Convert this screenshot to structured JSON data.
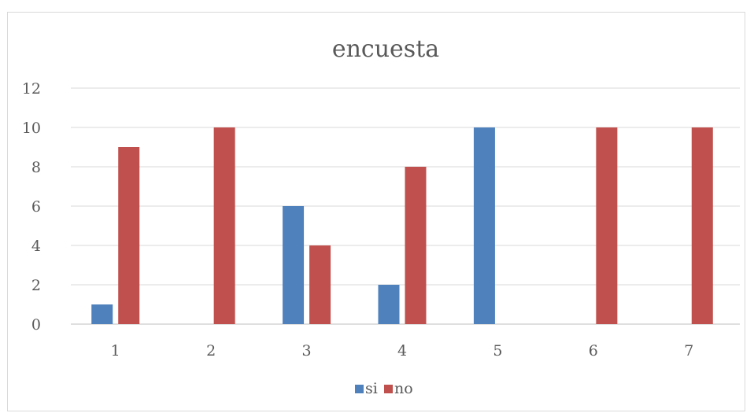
{
  "chart_data": {
    "type": "bar",
    "title": "encuesta",
    "xlabel": "",
    "ylabel": "",
    "categories": [
      "1",
      "2",
      "3",
      "4",
      "5",
      "6",
      "7"
    ],
    "series": [
      {
        "name": "si",
        "color": "#4f81bd",
        "values": [
          1,
          0,
          6,
          2,
          10,
          0,
          0
        ]
      },
      {
        "name": "no",
        "color": "#c0504d",
        "values": [
          9,
          10,
          4,
          8,
          0,
          10,
          10
        ]
      }
    ],
    "ylim": [
      0,
      12
    ],
    "yticks": [
      "0",
      "2",
      "4",
      "6",
      "8",
      "10",
      "12"
    ],
    "grid": true,
    "legend_position": "bottom"
  }
}
